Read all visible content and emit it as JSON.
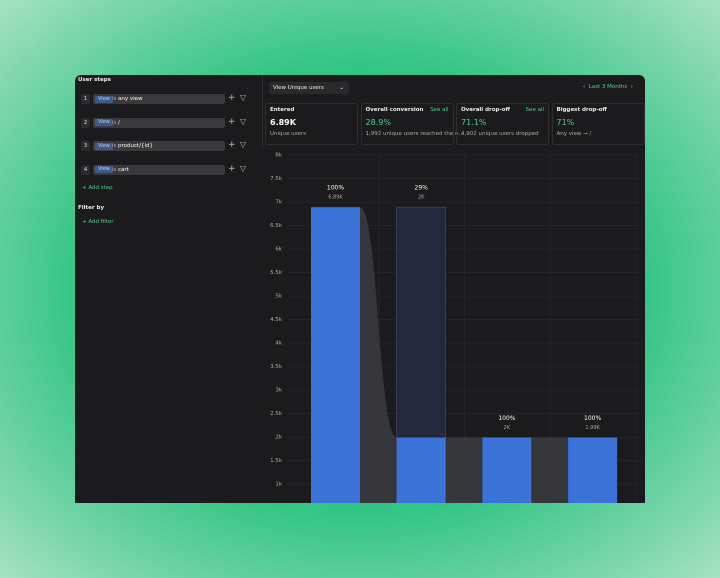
{
  "sidebar": {
    "title": "User steps",
    "steps": [
      {
        "index": "1",
        "event": "View",
        "op": "is",
        "value": "any view"
      },
      {
        "index": "2",
        "event": "View",
        "op": "is",
        "value": "/"
      },
      {
        "index": "3",
        "event": "View",
        "op": "is",
        "value": "product/{id}"
      },
      {
        "index": "4",
        "event": "View",
        "op": "is",
        "value": "cart"
      }
    ],
    "add_step": "Add step",
    "filter_title": "Filter by",
    "add_filter": "Add filter"
  },
  "toolbar": {
    "metric": "View Unique users",
    "range": "Last 3 Months"
  },
  "stats": [
    {
      "title": "Entered",
      "value": "6.89K",
      "note": "Unique users"
    },
    {
      "title": "Overall conversion",
      "link": "See all",
      "value": "28.9%",
      "note": "1,992 unique users reached the e..."
    },
    {
      "title": "Overall drop-off",
      "link": "See all",
      "value": "71.1%",
      "note": "4,902 unique users dropped"
    },
    {
      "title": "Biggest drop-off",
      "value": "71%",
      "note": "Any view → /"
    }
  ],
  "chart_data": {
    "type": "funnel",
    "categories": [
      null,
      null,
      null,
      null
    ],
    "values": [
      6890,
      1992,
      1992,
      1992
    ],
    "value_labels": [
      "6.89K",
      "2K",
      "2K",
      "1.99K"
    ],
    "conversion_labels": [
      "100%",
      "29%",
      "100%",
      "100%"
    ],
    "color": "#3b73d9",
    "ylim": [
      600,
      8000
    ],
    "yticks": [
      {
        "value": 1000,
        "label": "1k"
      },
      {
        "value": 1500,
        "label": "1.5k"
      },
      {
        "value": 2000,
        "label": "2k"
      },
      {
        "value": 2500,
        "label": "2.5k"
      },
      {
        "value": 3000,
        "label": "3k"
      },
      {
        "value": 3500,
        "label": "3.5k"
      },
      {
        "value": 4000,
        "label": "4k"
      },
      {
        "value": 4500,
        "label": "4.5k"
      },
      {
        "value": 5000,
        "label": "5k"
      },
      {
        "value": 5500,
        "label": "5.5k"
      },
      {
        "value": 6000,
        "label": "6k"
      },
      {
        "value": 6500,
        "label": "6.5k"
      },
      {
        "value": 7000,
        "label": "7k"
      },
      {
        "value": 7500,
        "label": "7.5k"
      },
      {
        "value": 8000,
        "label": "8k"
      }
    ],
    "grid": true
  }
}
